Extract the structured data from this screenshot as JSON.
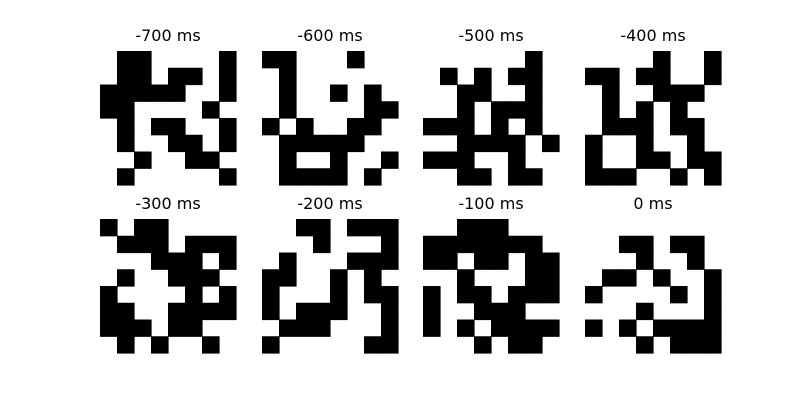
{
  "chart_data": {
    "type": "heatmap",
    "grid": "off",
    "colors": {
      "on": "#000000",
      "off": "#ffffff"
    },
    "panels": [
      {
        "title": "-700 ms",
        "matrix": [
          [
            0,
            1,
            1,
            0,
            0,
            0,
            0,
            1
          ],
          [
            0,
            1,
            1,
            0,
            1,
            1,
            0,
            1
          ],
          [
            1,
            1,
            1,
            1,
            1,
            0,
            0,
            1
          ],
          [
            1,
            1,
            0,
            0,
            0,
            0,
            1,
            0
          ],
          [
            0,
            1,
            0,
            1,
            1,
            0,
            0,
            1
          ],
          [
            0,
            1,
            0,
            0,
            1,
            1,
            0,
            1
          ],
          [
            0,
            0,
            1,
            0,
            0,
            1,
            1,
            0
          ],
          [
            0,
            1,
            0,
            0,
            0,
            0,
            0,
            1
          ]
        ]
      },
      {
        "title": "-600 ms",
        "matrix": [
          [
            1,
            1,
            0,
            0,
            0,
            1,
            0,
            0
          ],
          [
            0,
            1,
            0,
            0,
            0,
            0,
            0,
            0
          ],
          [
            0,
            1,
            0,
            0,
            1,
            0,
            1,
            0
          ],
          [
            0,
            1,
            0,
            0,
            0,
            0,
            1,
            1
          ],
          [
            1,
            0,
            1,
            0,
            0,
            1,
            1,
            0
          ],
          [
            0,
            1,
            1,
            1,
            1,
            1,
            0,
            0
          ],
          [
            0,
            1,
            0,
            0,
            1,
            0,
            0,
            1
          ],
          [
            0,
            1,
            1,
            1,
            1,
            0,
            1,
            0
          ]
        ]
      },
      {
        "title": "-500 ms",
        "matrix": [
          [
            0,
            0,
            0,
            0,
            0,
            0,
            1,
            0
          ],
          [
            0,
            1,
            0,
            1,
            0,
            1,
            1,
            0
          ],
          [
            0,
            0,
            1,
            1,
            0,
            0,
            1,
            0
          ],
          [
            0,
            0,
            1,
            0,
            1,
            1,
            1,
            0
          ],
          [
            1,
            1,
            1,
            0,
            1,
            0,
            1,
            0
          ],
          [
            0,
            0,
            1,
            1,
            1,
            1,
            0,
            1
          ],
          [
            1,
            1,
            1,
            0,
            0,
            1,
            0,
            0
          ],
          [
            0,
            0,
            1,
            1,
            0,
            1,
            1,
            0
          ]
        ]
      },
      {
        "title": "-400 ms",
        "matrix": [
          [
            0,
            0,
            0,
            0,
            1,
            0,
            0,
            1
          ],
          [
            1,
            1,
            0,
            1,
            1,
            0,
            0,
            1
          ],
          [
            0,
            1,
            0,
            0,
            1,
            1,
            1,
            0
          ],
          [
            0,
            1,
            0,
            1,
            0,
            1,
            0,
            0
          ],
          [
            0,
            1,
            1,
            1,
            0,
            1,
            1,
            0
          ],
          [
            1,
            0,
            0,
            1,
            0,
            0,
            1,
            0
          ],
          [
            1,
            0,
            0,
            1,
            1,
            0,
            1,
            1
          ],
          [
            1,
            1,
            1,
            0,
            0,
            1,
            0,
            1
          ]
        ]
      },
      {
        "title": "-300 ms",
        "matrix": [
          [
            1,
            0,
            1,
            1,
            0,
            0,
            0,
            0
          ],
          [
            0,
            1,
            1,
            1,
            0,
            1,
            1,
            1
          ],
          [
            0,
            0,
            0,
            1,
            1,
            1,
            0,
            1
          ],
          [
            0,
            1,
            0,
            0,
            1,
            1,
            1,
            0
          ],
          [
            1,
            0,
            0,
            0,
            0,
            1,
            0,
            1
          ],
          [
            1,
            1,
            0,
            0,
            1,
            1,
            1,
            1
          ],
          [
            1,
            1,
            1,
            0,
            1,
            1,
            0,
            0
          ],
          [
            0,
            1,
            0,
            1,
            0,
            0,
            1,
            0
          ]
        ]
      },
      {
        "title": "-200 ms",
        "matrix": [
          [
            0,
            0,
            1,
            1,
            0,
            1,
            1,
            1
          ],
          [
            0,
            0,
            0,
            1,
            0,
            0,
            0,
            1
          ],
          [
            0,
            1,
            0,
            0,
            0,
            1,
            1,
            1
          ],
          [
            1,
            1,
            0,
            0,
            1,
            0,
            1,
            0
          ],
          [
            1,
            0,
            0,
            0,
            1,
            0,
            1,
            1
          ],
          [
            1,
            0,
            1,
            1,
            1,
            0,
            0,
            1
          ],
          [
            0,
            1,
            1,
            1,
            0,
            0,
            0,
            1
          ],
          [
            1,
            0,
            0,
            0,
            0,
            0,
            1,
            1
          ]
        ]
      },
      {
        "title": "-100 ms",
        "matrix": [
          [
            0,
            0,
            1,
            1,
            1,
            0,
            0,
            0
          ],
          [
            1,
            1,
            1,
            1,
            1,
            1,
            1,
            0
          ],
          [
            1,
            1,
            0,
            1,
            1,
            0,
            1,
            1
          ],
          [
            0,
            0,
            1,
            0,
            0,
            0,
            1,
            1
          ],
          [
            1,
            0,
            1,
            1,
            0,
            1,
            1,
            1
          ],
          [
            1,
            0,
            0,
            1,
            1,
            1,
            0,
            0
          ],
          [
            1,
            0,
            1,
            0,
            1,
            1,
            1,
            1
          ],
          [
            0,
            0,
            0,
            1,
            0,
            1,
            1,
            0
          ]
        ]
      },
      {
        "title": "0 ms",
        "matrix": [
          [
            0,
            0,
            0,
            0,
            0,
            0,
            0,
            0
          ],
          [
            0,
            0,
            1,
            1,
            0,
            1,
            1,
            0
          ],
          [
            0,
            0,
            0,
            1,
            0,
            0,
            1,
            0
          ],
          [
            0,
            1,
            1,
            0,
            1,
            0,
            0,
            1
          ],
          [
            1,
            0,
            0,
            0,
            0,
            1,
            0,
            1
          ],
          [
            0,
            0,
            0,
            1,
            0,
            0,
            0,
            1
          ],
          [
            1,
            0,
            1,
            0,
            1,
            1,
            1,
            1
          ],
          [
            0,
            0,
            0,
            1,
            0,
            1,
            1,
            1
          ]
        ]
      }
    ]
  }
}
